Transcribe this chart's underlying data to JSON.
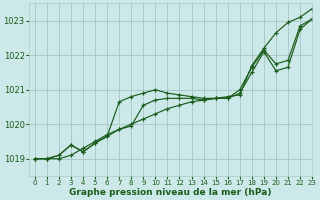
{
  "background_color": "#cce8e8",
  "grid_color": "#aacaca",
  "line_color": "#1a5c1a",
  "text_color": "#1a5c1a",
  "xlabel": "Graphe pression niveau de la mer (hPa)",
  "ylim": [
    1018.5,
    1023.5
  ],
  "xlim": [
    -0.5,
    23
  ],
  "yticks": [
    1019,
    1020,
    1021,
    1022,
    1023
  ],
  "xticks": [
    0,
    1,
    2,
    3,
    4,
    5,
    6,
    7,
    8,
    9,
    10,
    11,
    12,
    13,
    14,
    15,
    16,
    17,
    18,
    19,
    20,
    21,
    22,
    23
  ],
  "series": [
    [
      1019.0,
      1019.0,
      1019.0,
      1019.1,
      1019.3,
      1019.5,
      1019.7,
      1019.85,
      1020.0,
      1020.15,
      1020.3,
      1020.45,
      1020.55,
      1020.65,
      1020.7,
      1020.75,
      1020.8,
      1020.85,
      1021.7,
      1022.2,
      1022.65,
      1022.95,
      1023.1,
      1023.35
    ],
    [
      1019.0,
      1019.0,
      1019.1,
      1019.4,
      1019.2,
      1019.45,
      1019.65,
      1020.65,
      1020.8,
      1020.9,
      1021.0,
      1020.9,
      1020.85,
      1020.8,
      1020.75,
      1020.75,
      1020.75,
      1021.0,
      1021.65,
      1022.15,
      1021.75,
      1021.85,
      1022.85,
      1023.05
    ],
    [
      1019.0,
      1019.0,
      1019.1,
      1019.4,
      1019.2,
      1019.45,
      1019.65,
      1019.85,
      1019.95,
      1020.55,
      1020.7,
      1020.75,
      1020.75,
      1020.75,
      1020.7,
      1020.75,
      1020.75,
      1020.9,
      1021.5,
      1022.1,
      1021.55,
      1021.65,
      1022.75,
      1023.05
    ]
  ]
}
